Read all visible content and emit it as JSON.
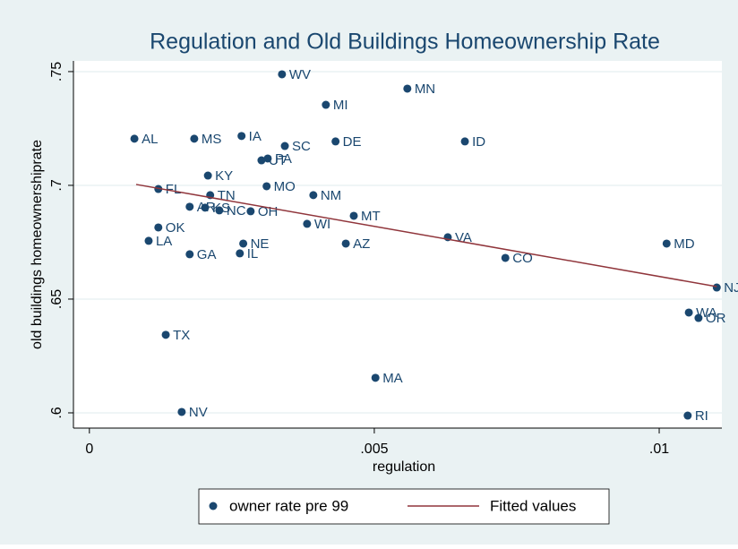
{
  "chart_data": {
    "type": "scatter",
    "title": "Regulation and Old Buildings Homeownership Rate",
    "xlabel": "regulation",
    "ylabel": "old buildings homeownershiprate",
    "xlim": [
      -0.00028,
      0.0111
    ],
    "ylim": [
      0.5933,
      0.7547
    ],
    "xticks": [
      0,
      {
        "value": 0.005,
        "label": ".005"
      },
      {
        "value": 0.01,
        "label": ".01"
      }
    ],
    "yticks": [
      {
        "value": 0.6,
        "label": ".6"
      },
      {
        "value": 0.65,
        "label": ".65"
      },
      {
        "value": 0.7,
        "label": ".7"
      },
      {
        "value": 0.75,
        "label": ".75"
      }
    ],
    "grid": true,
    "series": [
      {
        "name": "owner rate pre 99",
        "color": "#1a476f",
        "mode": "markers",
        "labels": [
          "WV",
          "MN",
          "MI",
          "AL",
          "MS",
          "IA",
          "DE",
          "ID",
          "SC",
          "UT",
          "PA",
          "KY",
          "FL",
          "TN",
          "MO",
          "NM",
          "AR",
          "KS",
          "NC",
          "OH",
          "MT",
          "OK",
          "WI",
          "LA",
          "NE",
          "AZ",
          "VA",
          "MD",
          "GA",
          "IL",
          "CO",
          "NJ",
          "WA",
          "OR",
          "TX",
          "MA",
          "NV",
          "RI"
        ],
        "x": [
          0.00338,
          0.00558,
          0.00415,
          0.00079,
          0.00184,
          0.00267,
          0.00432,
          0.00659,
          0.00343,
          0.00302,
          0.00313,
          0.00208,
          0.00121,
          0.00212,
          0.00311,
          0.00393,
          0.00176,
          0.00203,
          0.00228,
          0.00283,
          0.00464,
          0.00121,
          0.00382,
          0.00104,
          0.0027,
          0.0045,
          0.00629,
          0.01013,
          0.00176,
          0.00264,
          0.0073,
          0.01101,
          0.01052,
          0.01069,
          0.00134,
          0.00502,
          0.00162,
          0.0105
        ],
        "values": [
          0.7488,
          0.7425,
          0.7354,
          0.7205,
          0.7205,
          0.7217,
          0.7193,
          0.7193,
          0.7173,
          0.711,
          0.7118,
          0.7043,
          0.6984,
          0.6957,
          0.6996,
          0.6957,
          0.6906,
          0.6902,
          0.689,
          0.6886,
          0.6866,
          0.6815,
          0.6831,
          0.6756,
          0.6744,
          0.6744,
          0.6772,
          0.6744,
          0.6697,
          0.6701,
          0.6681,
          0.6551,
          0.6441,
          0.6417,
          0.6343,
          0.6154,
          0.6004,
          0.5988
        ]
      },
      {
        "name": "Fitted values",
        "color": "#90353b",
        "mode": "line",
        "x": [
          0.00082,
          0.01101
        ],
        "values": [
          0.7004,
          0.6555
        ]
      }
    ]
  }
}
